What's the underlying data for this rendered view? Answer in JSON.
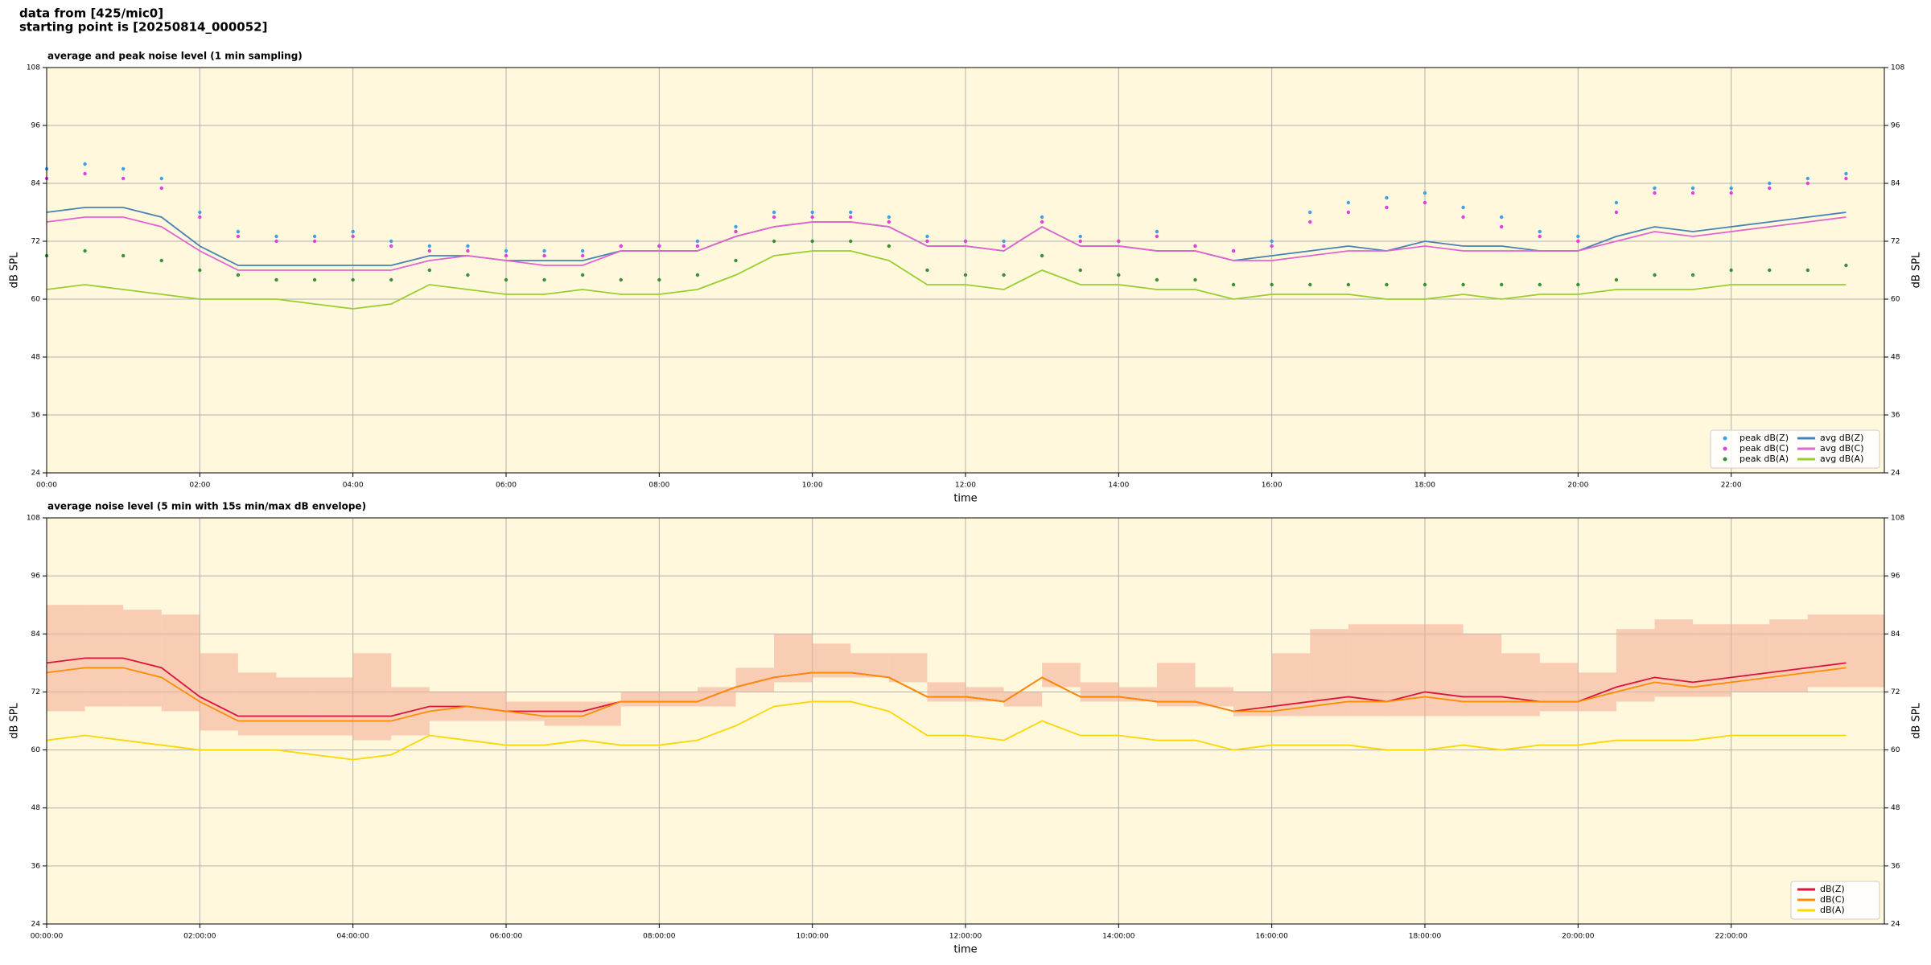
{
  "header": {
    "source": "data from [425/mic0]",
    "start": "starting point is [20250814_000052]"
  },
  "chart_data": [
    {
      "type": "line",
      "title": "average and peak noise level (1 min sampling)",
      "xlabel": "time",
      "ylabel": "dB SPL",
      "x": [
        0,
        0.5,
        1,
        1.5,
        2,
        2.5,
        3,
        3.5,
        4,
        4.5,
        5,
        5.5,
        6,
        6.5,
        7,
        7.5,
        8,
        8.5,
        9,
        9.5,
        10,
        10.5,
        11,
        11.5,
        12,
        12.5,
        13,
        13.5,
        14,
        14.5,
        15,
        15.5,
        16,
        16.5,
        17,
        17.5,
        18,
        18.5,
        19,
        19.5,
        20,
        20.5,
        21,
        21.5,
        22,
        22.5,
        23,
        23.5
      ],
      "xlim": [
        0,
        24
      ],
      "xticks": [
        {
          "value": 0,
          "label": "00:00"
        },
        {
          "value": 2,
          "label": "02:00"
        },
        {
          "value": 4,
          "label": "04:00"
        },
        {
          "value": 6,
          "label": "06:00"
        },
        {
          "value": 8,
          "label": "08:00"
        },
        {
          "value": 10,
          "label": "10:00"
        },
        {
          "value": 12,
          "label": "12:00"
        },
        {
          "value": 14,
          "label": "14:00"
        },
        {
          "value": 16,
          "label": "16:00"
        },
        {
          "value": 18,
          "label": "18:00"
        },
        {
          "value": 20,
          "label": "20:00"
        },
        {
          "value": 22,
          "label": "22:00"
        }
      ],
      "ylim": [
        24,
        108
      ],
      "yticks": [
        24,
        36,
        48,
        60,
        72,
        84,
        96,
        108
      ],
      "grid": true,
      "legend": "lower right",
      "legend_columns": 2,
      "series": [
        {
          "name": "peak dB(Z)",
          "kind": "marker",
          "color": "#3fa0e6",
          "values": [
            87,
            88,
            87,
            85,
            78,
            74,
            73,
            73,
            74,
            72,
            71,
            71,
            70,
            70,
            70,
            71,
            71,
            72,
            75,
            78,
            78,
            78,
            77,
            73,
            72,
            72,
            77,
            73,
            72,
            74,
            71,
            70,
            72,
            78,
            80,
            81,
            82,
            79,
            77,
            74,
            73,
            80,
            83,
            83,
            83,
            84,
            85,
            86
          ]
        },
        {
          "name": "peak dB(C)",
          "kind": "marker",
          "color": "#e040e0",
          "values": [
            85,
            86,
            85,
            83,
            77,
            73,
            72,
            72,
            73,
            71,
            70,
            70,
            69,
            69,
            69,
            71,
            71,
            71,
            74,
            77,
            77,
            77,
            76,
            72,
            72,
            71,
            76,
            72,
            72,
            73,
            71,
            70,
            71,
            76,
            78,
            79,
            80,
            77,
            75,
            73,
            72,
            78,
            82,
            82,
            82,
            83,
            84,
            85
          ]
        },
        {
          "name": "peak dB(A)",
          "kind": "marker",
          "color": "#3b8f3b",
          "values": [
            69,
            70,
            69,
            68,
            66,
            65,
            64,
            64,
            64,
            64,
            66,
            65,
            64,
            64,
            65,
            64,
            64,
            65,
            68,
            72,
            72,
            72,
            71,
            66,
            65,
            65,
            69,
            66,
            65,
            64,
            64,
            63,
            63,
            63,
            63,
            63,
            63,
            63,
            63,
            63,
            63,
            64,
            65,
            65,
            66,
            66,
            66,
            67
          ]
        },
        {
          "name": "avg dB(Z)",
          "kind": "line",
          "color": "#4682b4",
          "values": [
            78,
            79,
            79,
            77,
            71,
            67,
            67,
            67,
            67,
            67,
            69,
            69,
            68,
            68,
            68,
            70,
            70,
            70,
            73,
            75,
            76,
            76,
            75,
            71,
            71,
            70,
            75,
            71,
            71,
            70,
            70,
            68,
            69,
            70,
            71,
            70,
            72,
            71,
            71,
            70,
            70,
            73,
            75,
            74,
            75,
            76,
            77,
            78
          ]
        },
        {
          "name": "avg dB(C)",
          "kind": "line",
          "color": "#e065d0",
          "values": [
            76,
            77,
            77,
            75,
            70,
            66,
            66,
            66,
            66,
            66,
            68,
            69,
            68,
            67,
            67,
            70,
            70,
            70,
            73,
            75,
            76,
            76,
            75,
            71,
            71,
            70,
            75,
            71,
            71,
            70,
            70,
            68,
            68,
            69,
            70,
            70,
            71,
            70,
            70,
            70,
            70,
            72,
            74,
            73,
            74,
            75,
            76,
            77
          ]
        },
        {
          "name": "avg dB(A)",
          "kind": "line",
          "color": "#9acd32",
          "values": [
            62,
            63,
            62,
            61,
            60,
            60,
            60,
            59,
            58,
            59,
            63,
            62,
            61,
            61,
            62,
            61,
            61,
            62,
            65,
            69,
            70,
            70,
            68,
            63,
            63,
            62,
            66,
            63,
            63,
            62,
            62,
            60,
            61,
            61,
            61,
            60,
            60,
            61,
            60,
            61,
            61,
            62,
            62,
            62,
            63,
            63,
            63,
            63
          ]
        }
      ]
    },
    {
      "type": "line",
      "title": "average noise level (5 min with 15s min/max dB envelope)",
      "xlabel": "time",
      "ylabel": "dB SPL",
      "x": [
        0,
        0.5,
        1,
        1.5,
        2,
        2.5,
        3,
        3.5,
        4,
        4.5,
        5,
        5.5,
        6,
        6.5,
        7,
        7.5,
        8,
        8.5,
        9,
        9.5,
        10,
        10.5,
        11,
        11.5,
        12,
        12.5,
        13,
        13.5,
        14,
        14.5,
        15,
        15.5,
        16,
        16.5,
        17,
        17.5,
        18,
        18.5,
        19,
        19.5,
        20,
        20.5,
        21,
        21.5,
        22,
        22.5,
        23,
        23.5
      ],
      "xlim": [
        0,
        24
      ],
      "xticks": [
        {
          "value": 0,
          "label": "00:00:00"
        },
        {
          "value": 2,
          "label": "02:00:00"
        },
        {
          "value": 4,
          "label": "04:00:00"
        },
        {
          "value": 6,
          "label": "06:00:00"
        },
        {
          "value": 8,
          "label": "08:00:00"
        },
        {
          "value": 10,
          "label": "10:00:00"
        },
        {
          "value": 12,
          "label": "12:00:00"
        },
        {
          "value": 14,
          "label": "14:00:00"
        },
        {
          "value": 16,
          "label": "16:00:00"
        },
        {
          "value": 18,
          "label": "18:00:00"
        },
        {
          "value": 20,
          "label": "20:00:00"
        },
        {
          "value": 22,
          "label": "22:00:00"
        }
      ],
      "ylim": [
        24,
        108
      ],
      "yticks": [
        24,
        36,
        48,
        60,
        72,
        84,
        96,
        108
      ],
      "grid": true,
      "legend": "lower right",
      "legend_columns": 1,
      "envelope": {
        "color": "#f4b09a",
        "min": [
          68,
          69,
          69,
          68,
          64,
          63,
          63,
          63,
          62,
          63,
          66,
          66,
          66,
          65,
          65,
          69,
          69,
          69,
          72,
          74,
          75,
          75,
          74,
          70,
          70,
          69,
          73,
          70,
          70,
          69,
          69,
          67,
          67,
          67,
          67,
          67,
          67,
          67,
          67,
          68,
          68,
          70,
          71,
          71,
          72,
          72,
          73,
          73
        ],
        "max": [
          90,
          90,
          89,
          88,
          80,
          76,
          75,
          75,
          80,
          73,
          72,
          72,
          70,
          70,
          70,
          72,
          72,
          73,
          77,
          84,
          82,
          80,
          80,
          74,
          73,
          72,
          78,
          74,
          73,
          78,
          73,
          72,
          80,
          85,
          86,
          86,
          86,
          84,
          80,
          78,
          76,
          85,
          87,
          86,
          86,
          87,
          88,
          88
        ]
      },
      "series": [
        {
          "name": "dB(Z)",
          "kind": "line",
          "color": "#dc143c",
          "values": [
            78,
            79,
            79,
            77,
            71,
            67,
            67,
            67,
            67,
            67,
            69,
            69,
            68,
            68,
            68,
            70,
            70,
            70,
            73,
            75,
            76,
            76,
            75,
            71,
            71,
            70,
            75,
            71,
            71,
            70,
            70,
            68,
            69,
            70,
            71,
            70,
            72,
            71,
            71,
            70,
            70,
            73,
            75,
            74,
            75,
            76,
            77,
            78
          ]
        },
        {
          "name": "dB(C)",
          "kind": "line",
          "color": "#ff8c00",
          "values": [
            76,
            77,
            77,
            75,
            70,
            66,
            66,
            66,
            66,
            66,
            68,
            69,
            68,
            67,
            67,
            70,
            70,
            70,
            73,
            75,
            76,
            76,
            75,
            71,
            71,
            70,
            75,
            71,
            71,
            70,
            70,
            68,
            68,
            69,
            70,
            70,
            71,
            70,
            70,
            70,
            70,
            72,
            74,
            73,
            74,
            75,
            76,
            77
          ]
        },
        {
          "name": "dB(A)",
          "kind": "line",
          "color": "#ffd700",
          "values": [
            62,
            63,
            62,
            61,
            60,
            60,
            60,
            59,
            58,
            59,
            63,
            62,
            61,
            61,
            62,
            61,
            61,
            62,
            65,
            69,
            70,
            70,
            68,
            63,
            63,
            62,
            66,
            63,
            63,
            62,
            62,
            60,
            61,
            61,
            61,
            60,
            60,
            61,
            60,
            61,
            61,
            62,
            62,
            62,
            63,
            63,
            63,
            63
          ]
        }
      ]
    }
  ]
}
